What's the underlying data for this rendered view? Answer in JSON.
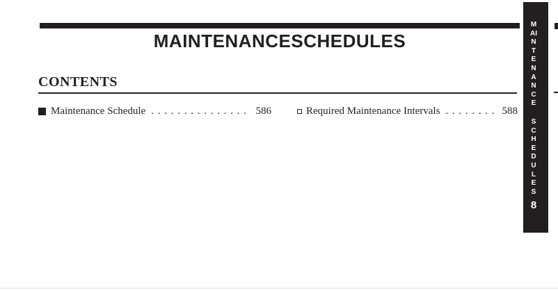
{
  "page": {
    "title": "MAINTENANCESCHEDULES",
    "contents_heading": "CONTENTS",
    "entries": [
      {
        "bullet_icon": "filled-square",
        "label": "Maintenance Schedule",
        "dots": ". . . . . . . . . . . . . . . . . .",
        "page_number": "586"
      },
      {
        "bullet_icon": "hollow-square",
        "label": "Required Maintenance Intervals",
        "dots": ". . . . . . . . . .",
        "page_number": "588"
      }
    ]
  },
  "side_tab": {
    "word_top": "MAINTENANCE",
    "word_bottom": "SCHEDULES",
    "chapter_number": "8"
  },
  "colors": {
    "ink": "#231f20",
    "paper": "#ffffff",
    "tab_background": "#231f20",
    "tab_text": "#ffffff",
    "edge_line": "#ececec"
  }
}
